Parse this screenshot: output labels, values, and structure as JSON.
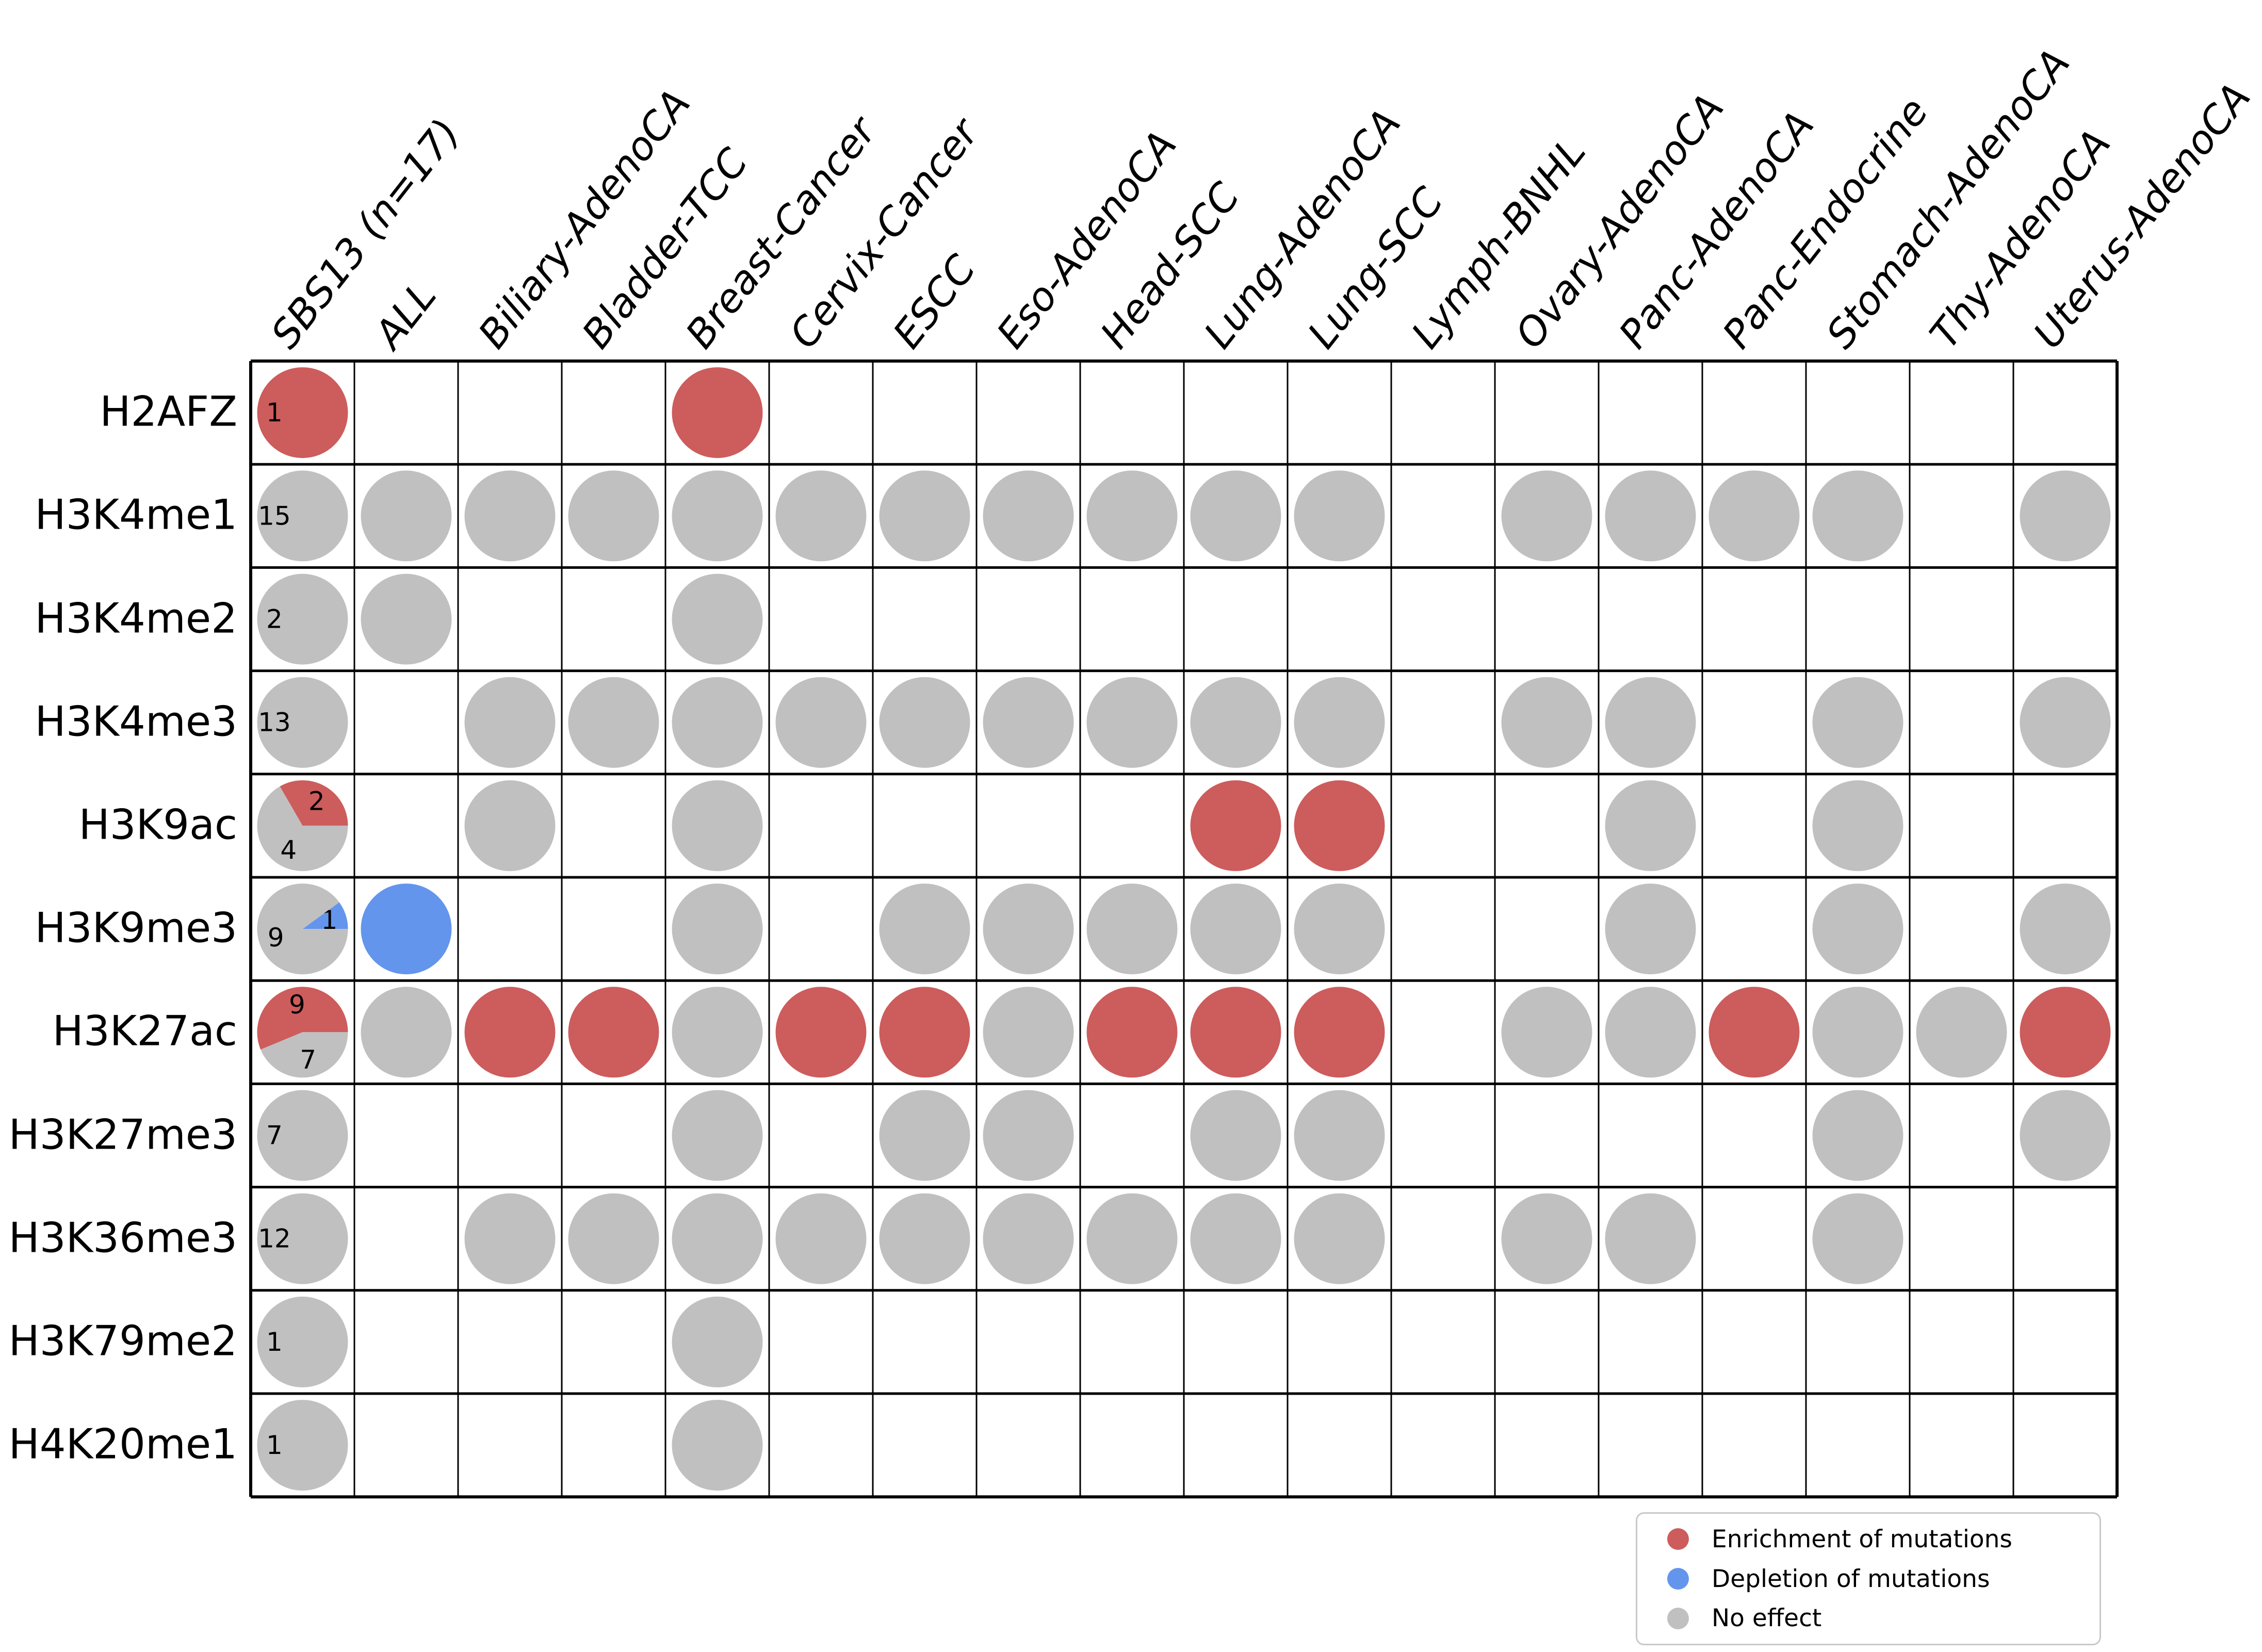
{
  "colors": {
    "enrichment": "#CD5C5C",
    "depletion": "#6495ED",
    "none": "#C0C0C0",
    "grid_line": "#000000"
  },
  "legend": {
    "items": [
      {
        "name": "enrichment-legend-entry",
        "label": "Enrichment of mutations",
        "color": "#CD5C5C"
      },
      {
        "name": "depletion-legend-entry",
        "label": "Depletion of mutations",
        "color": "#6495ED"
      },
      {
        "name": "no-effect-legend-entry",
        "label": "No effect",
        "color": "#C0C0C0"
      }
    ]
  },
  "chart_data": {
    "type": "matrix",
    "description": "Grid of histone marks (rows) versus cancer types (columns). Each occupied cell holds a circle colored by mutation effect; the first column (SBS13, n=17) holds pie charts whose slices are labeled with sample counts.",
    "legend_position": "bottom-right",
    "columns": [
      "SBS13 (n=17)",
      "ALL",
      "Biliary-AdenoCA",
      "Bladder-TCC",
      "Breast-Cancer",
      "Cervix-Cancer",
      "ESCC",
      "Eso-AdenoCA",
      "Head-SCC",
      "Lung-AdenoCA",
      "Lung-SCC",
      "Lymph-BNHL",
      "Ovary-AdenoCA",
      "Panc-AdenoCA",
      "Panc-Endocrine",
      "Stomach-AdenoCA",
      "Thy-AdenoCA",
      "Uterus-AdenoCA"
    ],
    "rows": [
      "H2AFZ",
      "H3K4me1",
      "H3K4me2",
      "H3K4me3",
      "H3K9ac",
      "H3K9me3",
      "H3K27ac",
      "H3K27me3",
      "H3K36me3",
      "H3K79me2",
      "H4K20me1"
    ],
    "matrix": [
      {
        "mark": "H2AFZ",
        "cells": [
          {
            "pie": [
              {
                "value": 1,
                "effect": "enrichment",
                "label": "1"
              }
            ]
          },
          null,
          null,
          null,
          {
            "effect": "enrichment"
          },
          null,
          null,
          null,
          null,
          null,
          null,
          null,
          null,
          null,
          null,
          null,
          null,
          null
        ]
      },
      {
        "mark": "H3K4me1",
        "cells": [
          {
            "pie": [
              {
                "value": 15,
                "effect": "none",
                "label": "15"
              }
            ]
          },
          {
            "effect": "none"
          },
          {
            "effect": "none"
          },
          {
            "effect": "none"
          },
          {
            "effect": "none"
          },
          {
            "effect": "none"
          },
          {
            "effect": "none"
          },
          {
            "effect": "none"
          },
          {
            "effect": "none"
          },
          {
            "effect": "none"
          },
          {
            "effect": "none"
          },
          null,
          {
            "effect": "none"
          },
          {
            "effect": "none"
          },
          {
            "effect": "none"
          },
          {
            "effect": "none"
          },
          null,
          {
            "effect": "none"
          }
        ]
      },
      {
        "mark": "H3K4me2",
        "cells": [
          {
            "pie": [
              {
                "value": 2,
                "effect": "none",
                "label": "2"
              }
            ]
          },
          {
            "effect": "none"
          },
          null,
          null,
          {
            "effect": "none"
          },
          null,
          null,
          null,
          null,
          null,
          null,
          null,
          null,
          null,
          null,
          null,
          null,
          null
        ]
      },
      {
        "mark": "H3K4me3",
        "cells": [
          {
            "pie": [
              {
                "value": 13,
                "effect": "none",
                "label": "13"
              }
            ]
          },
          null,
          {
            "effect": "none"
          },
          {
            "effect": "none"
          },
          {
            "effect": "none"
          },
          {
            "effect": "none"
          },
          {
            "effect": "none"
          },
          {
            "effect": "none"
          },
          {
            "effect": "none"
          },
          {
            "effect": "none"
          },
          {
            "effect": "none"
          },
          null,
          {
            "effect": "none"
          },
          {
            "effect": "none"
          },
          null,
          {
            "effect": "none"
          },
          null,
          {
            "effect": "none"
          }
        ]
      },
      {
        "mark": "H3K9ac",
        "cells": [
          {
            "pie": [
              {
                "value": 2,
                "effect": "enrichment",
                "label": "2"
              },
              {
                "value": 4,
                "effect": "none",
                "label": "4"
              }
            ]
          },
          null,
          {
            "effect": "none"
          },
          null,
          {
            "effect": "none"
          },
          null,
          null,
          null,
          null,
          {
            "effect": "enrichment"
          },
          {
            "effect": "enrichment"
          },
          null,
          null,
          {
            "effect": "none"
          },
          null,
          {
            "effect": "none"
          },
          null,
          null
        ]
      },
      {
        "mark": "H3K9me3",
        "cells": [
          {
            "pie": [
              {
                "value": 1,
                "effect": "depletion",
                "label": "1"
              },
              {
                "value": 9,
                "effect": "none",
                "label": "9"
              }
            ]
          },
          {
            "effect": "depletion"
          },
          null,
          null,
          {
            "effect": "none"
          },
          null,
          {
            "effect": "none"
          },
          {
            "effect": "none"
          },
          {
            "effect": "none"
          },
          {
            "effect": "none"
          },
          {
            "effect": "none"
          },
          null,
          null,
          {
            "effect": "none"
          },
          null,
          {
            "effect": "none"
          },
          null,
          {
            "effect": "none"
          }
        ]
      },
      {
        "mark": "H3K27ac",
        "cells": [
          {
            "pie": [
              {
                "value": 9,
                "effect": "enrichment",
                "label": "9"
              },
              {
                "value": 7,
                "effect": "none",
                "label": "7"
              }
            ]
          },
          {
            "effect": "none"
          },
          {
            "effect": "enrichment"
          },
          {
            "effect": "enrichment"
          },
          {
            "effect": "none"
          },
          {
            "effect": "enrichment"
          },
          {
            "effect": "enrichment"
          },
          {
            "effect": "none"
          },
          {
            "effect": "enrichment"
          },
          {
            "effect": "enrichment"
          },
          {
            "effect": "enrichment"
          },
          null,
          {
            "effect": "none"
          },
          {
            "effect": "none"
          },
          {
            "effect": "enrichment"
          },
          {
            "effect": "none"
          },
          {
            "effect": "none"
          },
          {
            "effect": "enrichment"
          }
        ]
      },
      {
        "mark": "H3K27me3",
        "cells": [
          {
            "pie": [
              {
                "value": 7,
                "effect": "none",
                "label": "7"
              }
            ]
          },
          null,
          null,
          null,
          {
            "effect": "none"
          },
          null,
          {
            "effect": "none"
          },
          {
            "effect": "none"
          },
          null,
          {
            "effect": "none"
          },
          {
            "effect": "none"
          },
          null,
          null,
          null,
          null,
          {
            "effect": "none"
          },
          null,
          {
            "effect": "none"
          }
        ]
      },
      {
        "mark": "H3K36me3",
        "cells": [
          {
            "pie": [
              {
                "value": 12,
                "effect": "none",
                "label": "12"
              }
            ]
          },
          null,
          {
            "effect": "none"
          },
          {
            "effect": "none"
          },
          {
            "effect": "none"
          },
          {
            "effect": "none"
          },
          {
            "effect": "none"
          },
          {
            "effect": "none"
          },
          {
            "effect": "none"
          },
          {
            "effect": "none"
          },
          {
            "effect": "none"
          },
          null,
          {
            "effect": "none"
          },
          {
            "effect": "none"
          },
          null,
          {
            "effect": "none"
          },
          null,
          null
        ]
      },
      {
        "mark": "H3K79me2",
        "cells": [
          {
            "pie": [
              {
                "value": 1,
                "effect": "none",
                "label": "1"
              }
            ]
          },
          null,
          null,
          null,
          {
            "effect": "none"
          },
          null,
          null,
          null,
          null,
          null,
          null,
          null,
          null,
          null,
          null,
          null,
          null,
          null
        ]
      },
      {
        "mark": "H4K20me1",
        "cells": [
          {
            "pie": [
              {
                "value": 1,
                "effect": "none",
                "label": "1"
              }
            ]
          },
          null,
          null,
          null,
          {
            "effect": "none"
          },
          null,
          null,
          null,
          null,
          null,
          null,
          null,
          null,
          null,
          null,
          null,
          null,
          null
        ]
      }
    ]
  }
}
